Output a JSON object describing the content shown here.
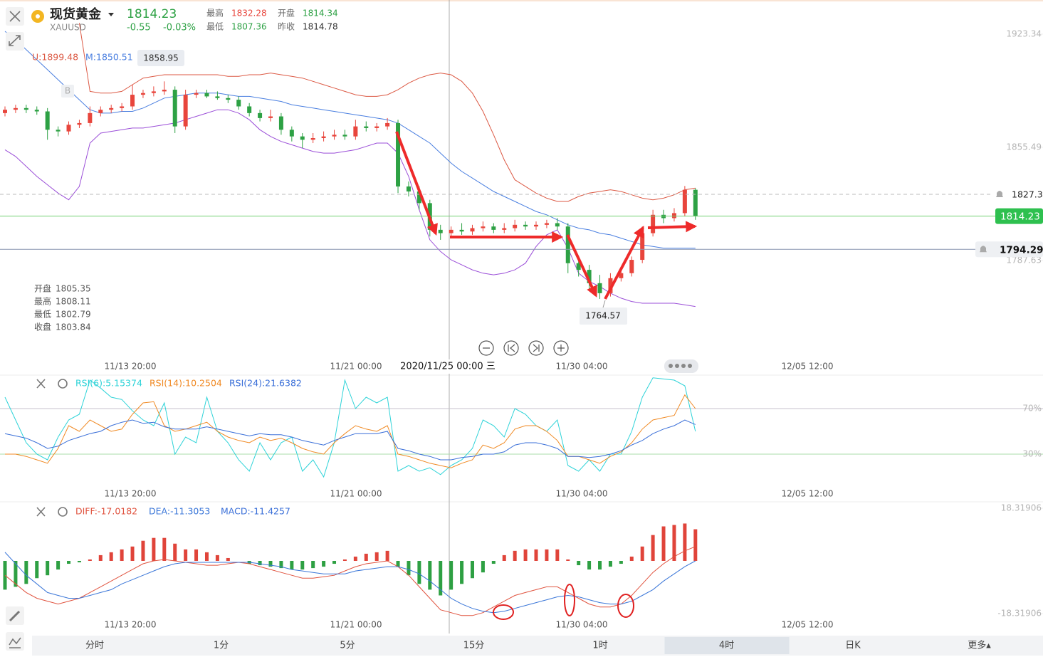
{
  "header": {
    "title": "现货黄金",
    "symbol": "XAUUSD",
    "price": "1814.23",
    "change": "-0.55",
    "change_pct": "-0.03%",
    "stats": [
      {
        "label": "最高",
        "value": "1832.28"
      },
      {
        "label": "开盘",
        "value": "1814.34"
      },
      {
        "label": "最低",
        "value": "1807.36"
      },
      {
        "label": "昨收",
        "value": "1814.78"
      }
    ]
  },
  "time_labels": [
    "11/13 20:00",
    "11/21 00:00",
    "11/30 04:00",
    "12/05 12:00"
  ],
  "crosshair_label": "2020/11/25 00:00 三",
  "chart_data": [
    {
      "type": "candlestick",
      "ylim": [
        1730.4,
        1943.8
      ],
      "yticks": [
        1923.34,
        1855.49,
        1787.63
      ],
      "up_color": "#e8453c",
      "down_color": "#2da144",
      "ohlc": [
        [
          1876,
          1880,
          1874,
          1878
        ],
        [
          1878,
          1881,
          1876,
          1879
        ],
        [
          1879,
          1881,
          1876,
          1878
        ],
        [
          1878,
          1880,
          1875,
          1877
        ],
        [
          1877,
          1879,
          1860,
          1866
        ],
        [
          1866,
          1868,
          1862,
          1865
        ],
        [
          1865,
          1871,
          1863,
          1869
        ],
        [
          1869,
          1872,
          1867,
          1870
        ],
        [
          1870,
          1880,
          1868,
          1876
        ],
        [
          1876,
          1880,
          1874,
          1878
        ],
        [
          1878,
          1881,
          1876,
          1879
        ],
        [
          1879,
          1882,
          1877,
          1880
        ],
        [
          1880,
          1893,
          1878,
          1887
        ],
        [
          1887,
          1890,
          1885,
          1888
        ],
        [
          1888,
          1892,
          1886,
          1889
        ],
        [
          1889,
          1895,
          1887,
          1890
        ],
        [
          1890,
          1892,
          1864,
          1868
        ],
        [
          1868,
          1890,
          1866,
          1887
        ],
        [
          1887,
          1890,
          1885,
          1888
        ],
        [
          1888,
          1890,
          1885,
          1886
        ],
        [
          1886,
          1889,
          1884,
          1885
        ],
        [
          1885,
          1887,
          1882,
          1884
        ],
        [
          1884,
          1886,
          1878,
          1880
        ],
        [
          1880,
          1882,
          1874,
          1876
        ],
        [
          1876,
          1878,
          1871,
          1873
        ],
        [
          1873,
          1878,
          1871,
          1874
        ],
        [
          1874,
          1876,
          1863,
          1866
        ],
        [
          1866,
          1868,
          1859,
          1862
        ],
        [
          1862,
          1864,
          1855,
          1860
        ],
        [
          1860,
          1864,
          1858,
          1861
        ],
        [
          1861,
          1865,
          1859,
          1862
        ],
        [
          1862,
          1866,
          1860,
          1863
        ],
        [
          1863,
          1866,
          1860,
          1862
        ],
        [
          1862,
          1872,
          1860,
          1868
        ],
        [
          1868,
          1871,
          1865,
          1867
        ],
        [
          1867,
          1870,
          1865,
          1868
        ],
        [
          1868,
          1873,
          1866,
          1870
        ],
        [
          1870,
          1872,
          1828,
          1832
        ],
        [
          1832,
          1835,
          1826,
          1829
        ],
        [
          1829,
          1832,
          1818,
          1822
        ],
        [
          1822,
          1824,
          1802,
          1806
        ],
        [
          1806,
          1809,
          1800,
          1804
        ],
        [
          1804,
          1808,
          1802,
          1806
        ],
        [
          1806,
          1810,
          1803,
          1805
        ],
        [
          1805,
          1809,
          1803,
          1807
        ],
        [
          1807,
          1811,
          1805,
          1808
        ],
        [
          1808,
          1810,
          1804,
          1806
        ],
        [
          1806,
          1810,
          1804,
          1807
        ],
        [
          1807,
          1812,
          1805,
          1809
        ],
        [
          1809,
          1811,
          1806,
          1808
        ],
        [
          1808,
          1811,
          1806,
          1809
        ],
        [
          1809,
          1812,
          1807,
          1810
        ],
        [
          1810,
          1813,
          1806,
          1808
        ],
        [
          1808,
          1810,
          1780,
          1786
        ],
        [
          1786,
          1790,
          1778,
          1782
        ],
        [
          1782,
          1785,
          1770,
          1774
        ],
        [
          1774,
          1779,
          1764.57,
          1768
        ],
        [
          1768,
          1780,
          1766,
          1777
        ],
        [
          1777,
          1783,
          1775,
          1780
        ],
        [
          1780,
          1790,
          1778,
          1788
        ],
        [
          1788,
          1808,
          1786,
          1804
        ],
        [
          1804,
          1818,
          1802,
          1815
        ],
        [
          1815,
          1818,
          1810,
          1813
        ],
        [
          1813,
          1819,
          1811,
          1816
        ],
        [
          1816,
          1832.28,
          1814,
          1830
        ],
        [
          1830,
          1831,
          1812,
          1814.23
        ]
      ],
      "series": [
        {
          "name": "U:1899.48",
          "color": "#dc5a45",
          "values": [
            null,
            null,
            null,
            null,
            null,
            null,
            null,
            1930,
            1889,
            1888,
            1888,
            1889,
            1893,
            1897,
            1898,
            1899,
            1899,
            1899,
            1899,
            1899,
            1899,
            1898,
            1898,
            1899,
            1899,
            1900,
            1899,
            1898,
            1897,
            1895,
            1893,
            1891,
            1889,
            1887,
            1886,
            1886,
            1887,
            1890,
            1894,
            1897,
            1899,
            1900,
            1899,
            1895,
            1888,
            1877,
            1863,
            1848,
            1836,
            1832,
            1828,
            1825,
            1823,
            1823,
            1826,
            1828,
            1829,
            1830,
            1829,
            1827,
            1825,
            1824,
            1825,
            1827,
            1830,
            1831
          ]
        },
        {
          "name": "M:1850.51",
          "color": "#4a7fe0",
          "values": [
            1925,
            1920,
            1914,
            1908,
            1902,
            1896,
            1890,
            1884,
            1878,
            1876,
            1876,
            1877,
            1877,
            1879,
            1882,
            1885,
            1886,
            1887,
            1888,
            1888,
            1888,
            1887,
            1886,
            1886,
            1885,
            1884,
            1883,
            1881,
            1880,
            1879,
            1878,
            1877,
            1876,
            1875,
            1874,
            1873,
            1872,
            1870,
            1866,
            1862,
            1858,
            1852,
            1846,
            1841,
            1837,
            1833,
            1829,
            1826,
            1823,
            1820,
            1817,
            1815,
            1812,
            1809,
            1807,
            1806,
            1804,
            1803,
            1801,
            1799,
            1797,
            1796,
            1795,
            1795,
            1795,
            1795
          ]
        },
        {
          "color": "#9b4fd8",
          "values": [
            1854,
            1850,
            1844,
            1838,
            1833,
            1828,
            1824,
            1832,
            1858,
            1864,
            1865,
            1866,
            1867,
            1867,
            1868,
            1869,
            1870,
            1872,
            1874,
            1876,
            1878,
            1878,
            1876,
            1872,
            1866,
            1862,
            1859,
            1857,
            1855,
            1853,
            1852,
            1852,
            1853,
            1854,
            1856,
            1858,
            1858,
            1852,
            1838,
            1818,
            1800,
            1793,
            1788,
            1785,
            1782,
            1780,
            1779,
            1780,
            1782,
            1786,
            1796,
            1803,
            1806,
            1795,
            1780,
            1775,
            1772,
            1768,
            1765,
            1763,
            1762,
            1762,
            1762,
            1762,
            1761,
            1760
          ]
        }
      ],
      "price_lines": [
        1827.3,
        1814.23,
        1794.29
      ],
      "tooltip": "1858.95",
      "marker": "B",
      "low_annotation": 1764.57,
      "ohlc_panel": [
        {
          "label": "开盘",
          "value": "1805.35"
        },
        {
          "label": "最高",
          "value": "1808.11"
        },
        {
          "label": "最低",
          "value": "1802.79"
        },
        {
          "label": "收盘",
          "value": "1803.84"
        }
      ]
    },
    {
      "type": "line",
      "ylim": [
        -1.25,
        98.75
      ],
      "yticks": [
        {
          "value": 70,
          "label": "70%"
        },
        {
          "value": 30,
          "label": "30%"
        }
      ],
      "series": [
        {
          "name": "RSI(6):5.15374",
          "color": "#2ed3d8",
          "values": [
            80,
            60,
            40,
            30,
            25,
            45,
            60,
            65,
            95,
            88,
            80,
            78,
            68,
            60,
            55,
            75,
            30,
            45,
            40,
            80,
            50,
            40,
            25,
            15,
            40,
            25,
            40,
            45,
            15,
            25,
            10,
            40,
            95,
            70,
            80,
            75,
            80,
            15,
            20,
            15,
            18,
            12,
            20,
            25,
            35,
            60,
            55,
            45,
            70,
            65,
            55,
            50,
            60,
            20,
            15,
            25,
            15,
            30,
            30,
            50,
            80,
            97,
            96,
            95,
            90,
            50
          ]
        },
        {
          "name": "RSI(14):10.2504",
          "color": "#f08a24",
          "values": [
            30,
            30,
            28,
            25,
            22,
            35,
            55,
            50,
            60,
            55,
            50,
            52,
            65,
            75,
            76,
            55,
            50,
            52,
            55,
            58,
            50,
            45,
            42,
            40,
            45,
            42,
            44,
            40,
            35,
            32,
            30,
            40,
            48,
            55,
            52,
            50,
            55,
            30,
            28,
            25,
            22,
            20,
            18,
            22,
            25,
            38,
            35,
            40,
            52,
            55,
            55,
            50,
            42,
            28,
            28,
            25,
            22,
            28,
            32,
            40,
            52,
            60,
            62,
            64,
            82,
            70
          ]
        },
        {
          "name": "RSI(24):21.6382",
          "color": "#3a6fd8",
          "values": [
            48,
            46,
            44,
            40,
            35,
            37,
            42,
            45,
            48,
            50,
            55,
            58,
            60,
            57,
            58,
            54,
            52,
            52,
            52,
            54,
            52,
            50,
            48,
            46,
            48,
            47,
            47,
            45,
            42,
            40,
            38,
            42,
            45,
            48,
            48,
            48,
            50,
            35,
            33,
            30,
            28,
            25,
            25,
            27,
            28,
            30,
            30,
            32,
            38,
            40,
            40,
            38,
            35,
            28,
            28,
            27,
            28,
            30,
            33,
            38,
            42,
            48,
            52,
            55,
            60,
            56
          ]
        }
      ]
    },
    {
      "type": "macd",
      "ylim": [
        -20.54,
        20.54
      ],
      "yticks": [
        18.31906,
        -18.31906
      ],
      "histogram": {
        "name": "MACD:-11.4257",
        "up_color": "#e0443a",
        "down_color": "#2ea043",
        "values": [
          -10,
          -9,
          -8,
          -6,
          -5,
          -3,
          -1,
          -0.5,
          0.5,
          2,
          3,
          4,
          5,
          7,
          8,
          8,
          6,
          4,
          4,
          3,
          2,
          1,
          0,
          -1,
          -1.5,
          -2,
          -2.5,
          -3,
          -3,
          -2.5,
          -2,
          -1,
          0.5,
          1.5,
          2.5,
          3,
          3.5,
          -2,
          -5,
          -8,
          -10,
          -12,
          -10,
          -8,
          -6,
          -4,
          -1,
          2,
          3.5,
          4,
          4,
          4,
          4,
          0.5,
          -1.5,
          -3,
          -3,
          -2,
          -1,
          1.5,
          5,
          9,
          12,
          12.5,
          13,
          11
        ]
      },
      "series": [
        {
          "name": "DIFF:-17.0182",
          "color": "#e0533f",
          "values": [
            -5,
            -8,
            -11,
            -13,
            -14,
            -15,
            -14,
            -13,
            -11,
            -9,
            -7,
            -5,
            -3,
            -1,
            0,
            0.5,
            0,
            -0.5,
            -1,
            -1.5,
            -1.5,
            -1,
            -0.5,
            -1,
            -2,
            -3,
            -4,
            -5,
            -6,
            -6,
            -5.5,
            -5,
            -3.5,
            -2,
            -1,
            -0.5,
            0,
            -2,
            -5,
            -9,
            -13,
            -17,
            -18,
            -19,
            -19,
            -18,
            -16,
            -14,
            -12,
            -11,
            -10,
            -9,
            -9,
            -11,
            -13,
            -15,
            -16,
            -16,
            -15,
            -12,
            -8,
            -4,
            -1,
            1.5,
            3.5,
            5
          ]
        },
        {
          "name": "DEA:-11.3053",
          "color": "#3a76d8",
          "values": [
            3,
            -1,
            -5,
            -8,
            -11,
            -12,
            -13,
            -13,
            -12,
            -11,
            -10,
            -8,
            -6.5,
            -5,
            -3.5,
            -2,
            -1,
            -0.5,
            -0.5,
            -0.5,
            -0.5,
            -0.5,
            -0.5,
            -0.5,
            -1,
            -1.5,
            -2,
            -3,
            -3.5,
            -4,
            -4.5,
            -4.5,
            -4.5,
            -3.5,
            -3,
            -2.5,
            -2,
            -2,
            -3,
            -4.5,
            -7,
            -10,
            -13,
            -15,
            -16.5,
            -17.5,
            -18,
            -17.5,
            -16.5,
            -15.5,
            -14.5,
            -13.5,
            -12.5,
            -12,
            -12.5,
            -13.5,
            -14.5,
            -15,
            -15,
            -14,
            -12,
            -10,
            -7,
            -4.5,
            -2,
            0
          ]
        }
      ]
    }
  ],
  "tabs": [
    "分时",
    "1分",
    "5分",
    "15分",
    "1时",
    "4时",
    "日K",
    "更多▴"
  ],
  "selected_tab": 5
}
